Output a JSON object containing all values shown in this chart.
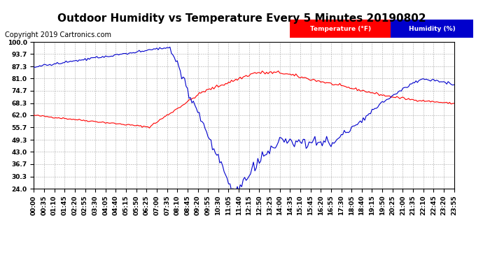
{
  "title": "Outdoor Humidity vs Temperature Every 5 Minutes 20190802",
  "copyright": "Copyright 2019 Cartronics.com",
  "legend_temp_label": "Temperature (°F)",
  "legend_hum_label": "Humidity (%)",
  "temp_color": "#ff0000",
  "hum_color": "#0000cc",
  "temp_legend_bg": "#ff0000",
  "hum_legend_bg": "#0000cc",
  "background_color": "#ffffff",
  "grid_color": "#aaaaaa",
  "ylim": [
    24.0,
    100.0
  ],
  "yticks": [
    24.0,
    30.3,
    36.7,
    43.0,
    49.3,
    55.7,
    62.0,
    68.3,
    74.7,
    81.0,
    87.3,
    93.7,
    100.0
  ],
  "title_fontsize": 11,
  "tick_fontsize": 6.5,
  "copyright_fontsize": 7,
  "n_points": 288,
  "xtick_step": 7
}
